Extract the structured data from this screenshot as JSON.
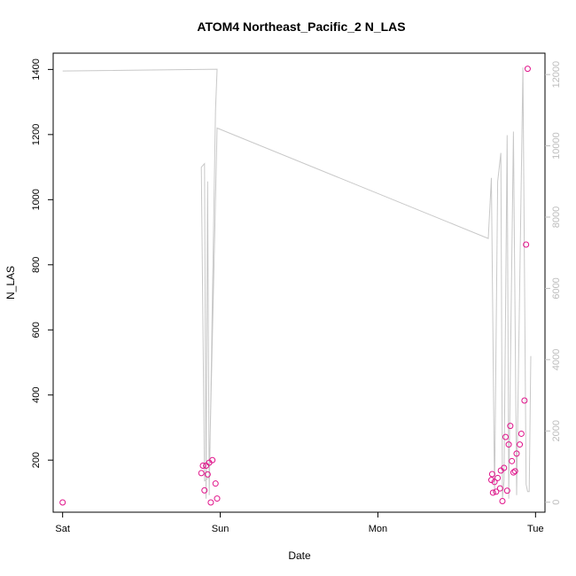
{
  "chart_data": {
    "type": "scatter",
    "title": "ATOM4 Northeast_Pacific_2 N_LAS",
    "xlabel": "Date",
    "ylabel": "N_LAS",
    "x_ticks": [
      {
        "label": "Sat",
        "value": 0
      },
      {
        "label": "Sun",
        "value": 1
      },
      {
        "label": "Mon",
        "value": 2
      },
      {
        "label": "Tue",
        "value": 3
      }
    ],
    "xlim": [
      -0.06,
      3.06
    ],
    "ylim": [
      40,
      1450
    ],
    "y_ticks": [
      200,
      400,
      600,
      800,
      1000,
      1200,
      1400
    ],
    "y2lim": [
      -280,
      12600
    ],
    "y2_ticks": [
      0,
      2000,
      4000,
      6000,
      8000,
      10000,
      12000
    ],
    "grid": false,
    "colors": {
      "points": "#e0138a",
      "secondary_line": "#c8c8c8",
      "secondary_axis": "#bdbdbd",
      "axis": "#000000"
    },
    "series": [
      {
        "type": "points",
        "axis": "left",
        "x": [
          0.0,
          0.88,
          0.89,
          0.9,
          0.91,
          0.92,
          0.93,
          0.94,
          0.95,
          0.97,
          0.98,
          2.72,
          2.725,
          2.73,
          2.74,
          2.75,
          2.76,
          2.775,
          2.78,
          2.79,
          2.8,
          2.81,
          2.82,
          2.83,
          2.84,
          2.85,
          2.86,
          2.87,
          2.88,
          2.9,
          2.91,
          2.93,
          2.94,
          2.95
        ],
        "y": [
          70,
          160,
          183,
          107,
          183,
          156,
          192,
          70,
          200,
          128,
          82,
          139,
          157,
          100,
          133,
          103,
          145,
          113,
          168,
          74,
          176,
          271,
          106,
          248,
          305,
          197,
          162,
          166,
          220,
          248,
          281,
          383,
          862,
          1402
        ]
      },
      {
        "type": "line",
        "axis": "right",
        "points": [
          [
            0.0,
            12100
          ],
          [
            0.98,
            12150
          ],
          [
            0.97,
            11000
          ],
          [
            0.93,
            200
          ],
          [
            0.92,
            9000
          ],
          [
            0.91,
            100
          ],
          [
            0.9,
            9500
          ],
          [
            0.88,
            9400
          ],
          [
            0.9,
            600
          ],
          [
            0.93,
            700
          ],
          [
            0.98,
            10500
          ],
          [
            2.7,
            7400
          ],
          [
            2.72,
            9100
          ],
          [
            2.74,
            200
          ],
          [
            2.76,
            9000
          ],
          [
            2.78,
            9800
          ],
          [
            2.79,
            100
          ],
          [
            2.8,
            600
          ],
          [
            2.82,
            10300
          ],
          [
            2.83,
            100
          ],
          [
            2.86,
            10400
          ],
          [
            2.88,
            200
          ],
          [
            2.92,
            12200
          ],
          [
            2.94,
            500
          ],
          [
            2.95,
            300
          ],
          [
            2.96,
            300
          ],
          [
            2.97,
            4100
          ]
        ]
      }
    ]
  }
}
